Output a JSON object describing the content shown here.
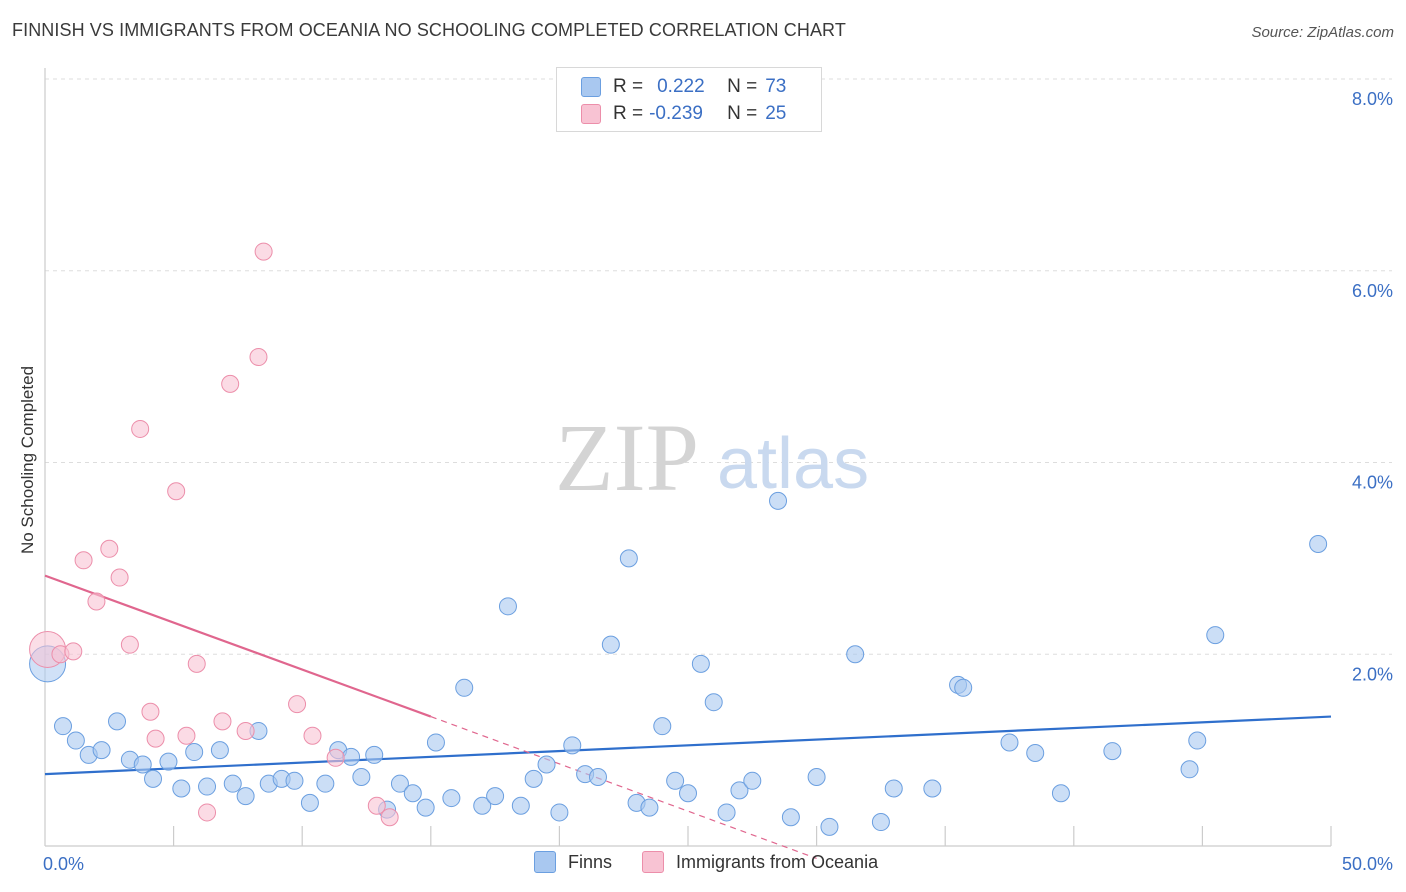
{
  "title": "FINNISH VS IMMIGRANTS FROM OCEANIA NO SCHOOLING COMPLETED CORRELATION CHART",
  "source": "Source: ZipAtlas.com",
  "watermark": {
    "zip": "ZIP",
    "atlas": "atlas"
  },
  "legend": {
    "rows": [
      {
        "r_label": "R =",
        "r_value": "0.222",
        "n_label": "N =",
        "n_value": "73",
        "color": "#a9c8f0",
        "border": "#6b9fe0"
      },
      {
        "r_label": "R =",
        "r_value": "-0.239",
        "n_label": "N =",
        "n_value": "25",
        "color": "#f8c3d3",
        "border": "#ec8eaa"
      }
    ]
  },
  "colors": {
    "finns": "#a9c8f0",
    "finns_stroke": "#6b9fe0",
    "finns_line": "#2f6fcc",
    "oceania": "#f8c3d3",
    "oceania_stroke": "#ec8eaa",
    "oceania_line": "#e0668e",
    "tick_label": "#3b6fc4"
  },
  "chart_data": {
    "type": "scatter",
    "ylabel": "No Schooling Completed",
    "xlim": [
      0,
      50
    ],
    "ylim": [
      0,
      8
    ],
    "x_tick_labels": [
      {
        "x": 0,
        "label": "0.0%"
      },
      {
        "x": 50,
        "label": "50.0%"
      }
    ],
    "y_ticks": [
      {
        "y": 2,
        "label": "2.0%"
      },
      {
        "y": 4,
        "label": "4.0%"
      },
      {
        "y": 6,
        "label": "6.0%"
      },
      {
        "y": 8,
        "label": "8.0%"
      }
    ],
    "series": [
      {
        "name": "Finns",
        "points": [
          [
            0.1,
            1.9
          ],
          [
            0.7,
            1.25
          ],
          [
            1.2,
            1.1
          ],
          [
            1.7,
            0.95
          ],
          [
            2.2,
            1.0
          ],
          [
            2.8,
            1.3
          ],
          [
            3.3,
            0.9
          ],
          [
            3.8,
            0.85
          ],
          [
            4.2,
            0.7
          ],
          [
            4.8,
            0.88
          ],
          [
            5.3,
            0.6
          ],
          [
            5.8,
            0.98
          ],
          [
            6.3,
            0.62
          ],
          [
            6.8,
            1.0
          ],
          [
            7.3,
            0.65
          ],
          [
            7.8,
            0.52
          ],
          [
            8.3,
            1.2
          ],
          [
            8.7,
            0.65
          ],
          [
            9.2,
            0.7
          ],
          [
            9.7,
            0.68
          ],
          [
            10.3,
            0.45
          ],
          [
            10.9,
            0.65
          ],
          [
            11.4,
            1.0
          ],
          [
            11.9,
            0.93
          ],
          [
            12.3,
            0.72
          ],
          [
            12.8,
            0.95
          ],
          [
            13.3,
            0.38
          ],
          [
            13.8,
            0.65
          ],
          [
            14.3,
            0.55
          ],
          [
            14.8,
            0.4
          ],
          [
            15.2,
            1.08
          ],
          [
            15.8,
            0.5
          ],
          [
            16.3,
            1.65
          ],
          [
            17.0,
            0.42
          ],
          [
            17.5,
            0.52
          ],
          [
            18.0,
            2.5
          ],
          [
            18.5,
            0.42
          ],
          [
            19.0,
            0.7
          ],
          [
            19.5,
            0.85
          ],
          [
            20.0,
            0.35
          ],
          [
            20.5,
            1.05
          ],
          [
            21.0,
            0.75
          ],
          [
            21.5,
            0.72
          ],
          [
            22.0,
            2.1
          ],
          [
            22.7,
            3.0
          ],
          [
            23.0,
            0.45
          ],
          [
            23.5,
            0.4
          ],
          [
            24.0,
            1.25
          ],
          [
            24.5,
            0.68
          ],
          [
            25.0,
            0.55
          ],
          [
            25.5,
            1.9
          ],
          [
            26.0,
            1.5
          ],
          [
            26.5,
            0.35
          ],
          [
            27.0,
            0.58
          ],
          [
            27.5,
            0.68
          ],
          [
            28.5,
            3.6
          ],
          [
            29.0,
            0.3
          ],
          [
            30.0,
            0.72
          ],
          [
            30.5,
            0.2
          ],
          [
            31.5,
            2.0
          ],
          [
            32.5,
            0.25
          ],
          [
            33.0,
            0.6
          ],
          [
            34.5,
            0.6
          ],
          [
            35.5,
            1.68
          ],
          [
            35.7,
            1.65
          ],
          [
            37.5,
            1.08
          ],
          [
            38.5,
            0.97
          ],
          [
            39.5,
            0.55
          ],
          [
            41.5,
            0.99
          ],
          [
            44.5,
            0.8
          ],
          [
            44.8,
            1.1
          ],
          [
            45.5,
            2.2
          ],
          [
            49.5,
            3.15
          ]
        ],
        "trend": [
          [
            0,
            0.75
          ],
          [
            50,
            1.35
          ]
        ]
      },
      {
        "name": "Immigrants from Oceania",
        "points": [
          [
            0.1,
            2.05
          ],
          [
            0.6,
            2.0
          ],
          [
            1.1,
            2.03
          ],
          [
            1.5,
            2.98
          ],
          [
            2.0,
            2.55
          ],
          [
            2.5,
            3.1
          ],
          [
            2.9,
            2.8
          ],
          [
            3.3,
            2.1
          ],
          [
            3.7,
            4.35
          ],
          [
            4.1,
            1.4
          ],
          [
            4.3,
            1.12
          ],
          [
            5.1,
            3.7
          ],
          [
            5.5,
            1.15
          ],
          [
            5.9,
            1.9
          ],
          [
            6.3,
            0.35
          ],
          [
            6.9,
            1.3
          ],
          [
            7.2,
            4.82
          ],
          [
            7.8,
            1.2
          ],
          [
            8.3,
            5.1
          ],
          [
            8.5,
            6.2
          ],
          [
            9.8,
            1.48
          ],
          [
            10.4,
            1.15
          ],
          [
            11.3,
            0.92
          ],
          [
            12.9,
            0.42
          ],
          [
            13.4,
            0.3
          ]
        ],
        "trend": [
          [
            0,
            2.82
          ],
          [
            15,
            1.35
          ]
        ],
        "trend_extension": [
          [
            15,
            1.35
          ],
          [
            30,
            -0.13
          ]
        ]
      }
    ]
  },
  "bottom_legend": [
    {
      "label": "Finns"
    },
    {
      "label": "Immigrants from Oceania"
    }
  ]
}
